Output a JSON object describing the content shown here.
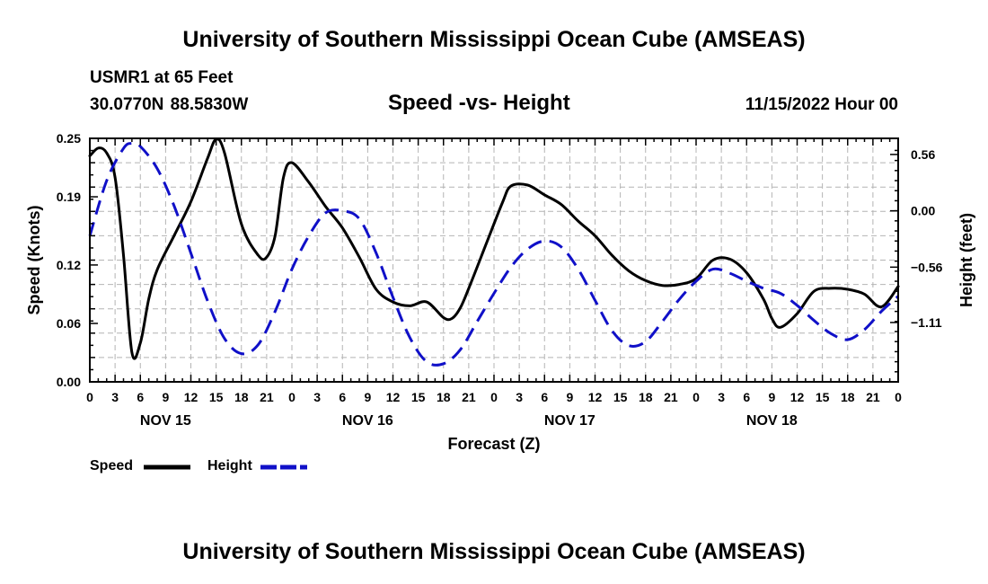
{
  "page": {
    "title": "University of Southern Mississippi Ocean Cube (AMSEAS)",
    "footer_title": "University of Southern Mississippi Ocean Cube (AMSEAS)",
    "station": "USMR1 at 65 Feet",
    "coords": "30.0770N  88.5830W",
    "subtitle": "Speed -vs- Height",
    "datetime": "11/15/2022 Hour 00"
  },
  "chart_data": {
    "type": "line",
    "title": "Speed -vs- Height",
    "xlabel": "Forecast (Z)",
    "ylabel": "Speed (Knots)",
    "y2label": "Height (feet)",
    "x_range_hours": [
      0,
      96
    ],
    "x_tick_labels": [
      "0",
      "3",
      "6",
      "9",
      "12",
      "15",
      "18",
      "21",
      "0",
      "3",
      "6",
      "9",
      "12",
      "15",
      "18",
      "21",
      "0",
      "3",
      "6",
      "9",
      "12",
      "15",
      "18",
      "21",
      "0",
      "3",
      "6",
      "9",
      "12",
      "15",
      "18",
      "21",
      "0"
    ],
    "day_labels": [
      {
        "label": "NOV 15",
        "hour": 9
      },
      {
        "label": "NOV 16",
        "hour": 33
      },
      {
        "label": "NOV 17",
        "hour": 57
      },
      {
        "label": "NOV 18",
        "hour": 81
      }
    ],
    "ylim": [
      0,
      0.25
    ],
    "y_ticks": [
      0,
      0.06,
      0.12,
      0.19,
      0.25
    ],
    "y_tick_labels": [
      "0.00",
      "0.06",
      "0.12",
      "0.19",
      "0.25"
    ],
    "y2lim": [
      -1.7,
      0.72
    ],
    "y2_ticks": [
      0.56,
      0.0,
      -0.56,
      -1.11
    ],
    "y2_tick_labels": [
      "0.56",
      "0.00",
      "−0.56",
      "−1.11"
    ],
    "series": [
      {
        "name": "Speed",
        "axis": "left",
        "color": "#000000",
        "dash": "solid",
        "x": [
          0,
          1,
          2,
          3,
          4,
          5,
          6,
          7,
          8,
          10,
          12,
          14,
          15,
          16,
          18,
          20,
          21,
          22,
          23,
          24,
          26,
          28,
          30,
          32,
          34,
          36,
          38,
          40,
          42,
          43,
          44,
          45,
          47,
          49,
          50,
          52,
          54,
          56,
          58,
          60,
          62,
          64,
          66,
          68,
          70,
          72,
          74,
          76,
          78,
          80,
          81,
          82,
          84,
          86,
          88,
          90,
          92,
          94,
          96
        ],
        "values": [
          0.232,
          0.24,
          0.235,
          0.21,
          0.13,
          0.03,
          0.04,
          0.085,
          0.115,
          0.15,
          0.185,
          0.23,
          0.249,
          0.235,
          0.162,
          0.13,
          0.128,
          0.15,
          0.21,
          0.225,
          0.205,
          0.18,
          0.158,
          0.128,
          0.095,
          0.082,
          0.078,
          0.082,
          0.066,
          0.065,
          0.076,
          0.096,
          0.14,
          0.184,
          0.201,
          0.202,
          0.192,
          0.182,
          0.165,
          0.15,
          0.13,
          0.114,
          0.104,
          0.099,
          0.1,
          0.106,
          0.125,
          0.126,
          0.112,
          0.085,
          0.065,
          0.056,
          0.07,
          0.093,
          0.096,
          0.095,
          0.09,
          0.077,
          0.098
        ]
      },
      {
        "name": "Height",
        "axis": "right",
        "color": "#1010c8",
        "dash": "dashed",
        "x": [
          0,
          2,
          4,
          5,
          6,
          8,
          10,
          12,
          14,
          16,
          18,
          20,
          22,
          24,
          26,
          28,
          30,
          32,
          34,
          36,
          38,
          40,
          42,
          44,
          46,
          48,
          50,
          52,
          54,
          56,
          58,
          60,
          62,
          64,
          66,
          68,
          70,
          72,
          74,
          76,
          78,
          80,
          82,
          84,
          86,
          88,
          90,
          92,
          94,
          96
        ],
        "values": [
          -0.25,
          0.3,
          0.62,
          0.67,
          0.64,
          0.42,
          0.05,
          -0.42,
          -0.9,
          -1.27,
          -1.42,
          -1.33,
          -1.0,
          -0.58,
          -0.25,
          -0.02,
          0.0,
          -0.08,
          -0.42,
          -0.86,
          -1.26,
          -1.5,
          -1.52,
          -1.38,
          -1.1,
          -0.82,
          -0.56,
          -0.38,
          -0.3,
          -0.36,
          -0.58,
          -0.89,
          -1.19,
          -1.34,
          -1.3,
          -1.1,
          -0.88,
          -0.7,
          -0.58,
          -0.62,
          -0.7,
          -0.77,
          -0.82,
          -0.94,
          -1.09,
          -1.22,
          -1.28,
          -1.18,
          -1.0,
          -0.85
        ]
      }
    ],
    "legend": [
      {
        "label": "Speed",
        "color": "#000000",
        "dash": "solid"
      },
      {
        "label": "Height",
        "color": "#1010c8",
        "dash": "dashed"
      }
    ],
    "legend_position": "bottom-left",
    "grid": true
  }
}
